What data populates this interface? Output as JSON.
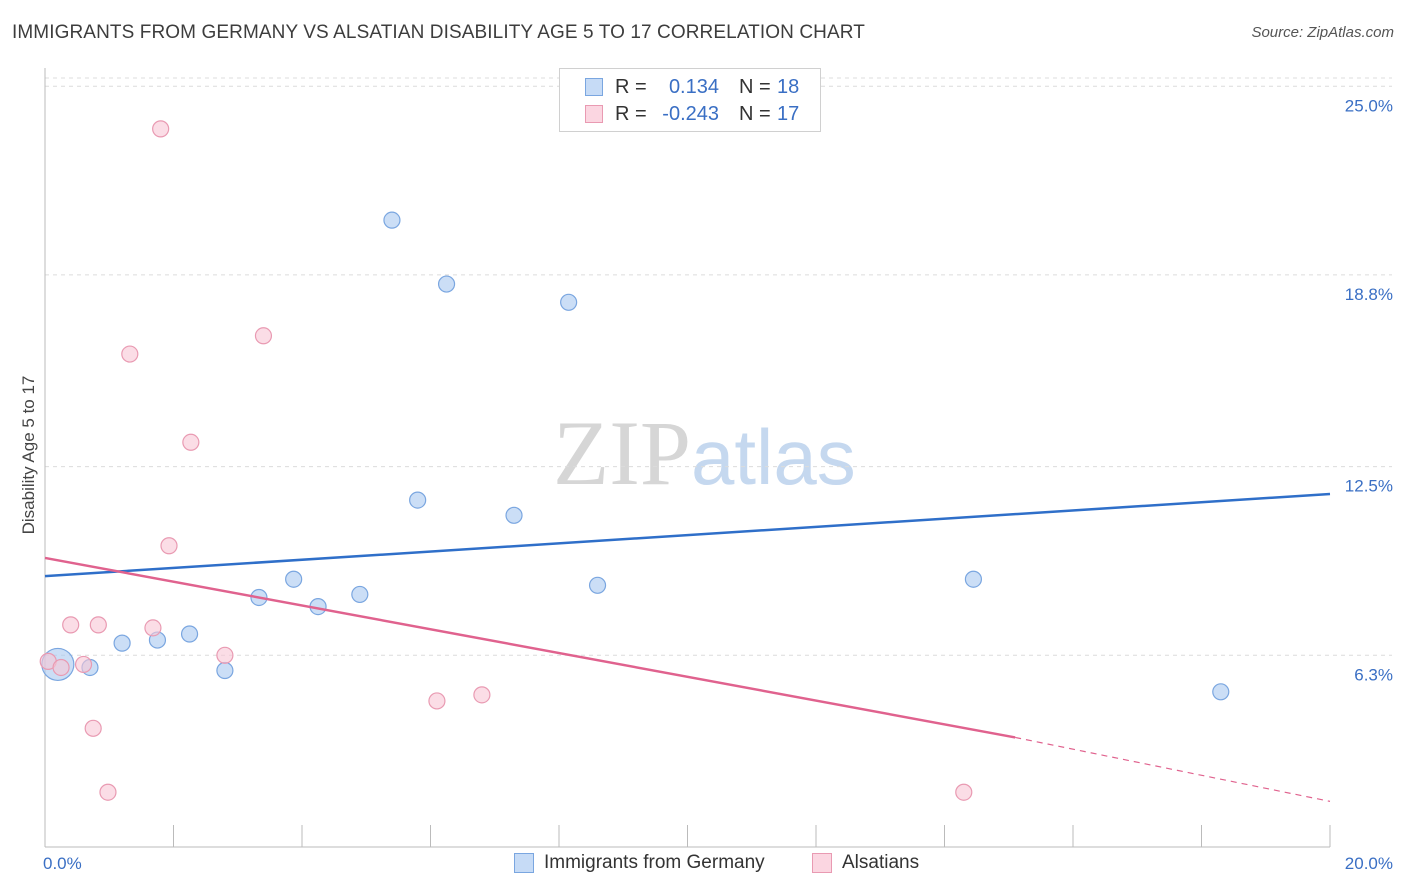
{
  "title": "IMMIGRANTS FROM GERMANY VS ALSATIAN DISABILITY AGE 5 TO 17 CORRELATION CHART",
  "source": "Source: ZipAtlas.com",
  "watermark": {
    "zip": "ZIP",
    "atlas": "atlas"
  },
  "legend": {
    "rows": [
      {
        "r_label": "R =",
        "r_value": "0.134",
        "n_label": "N =",
        "n_value": "18",
        "color": "#a9c8f0",
        "border": "#7aa6e0"
      },
      {
        "r_label": "R =",
        "r_value": "-0.243",
        "n_label": "N =",
        "n_value": "17",
        "color": "#f8c6d5",
        "border": "#e99ab2"
      }
    ]
  },
  "chart_data": {
    "type": "scatter",
    "title": "IMMIGRANTS FROM GERMANY VS ALSATIAN DISABILITY AGE 5 TO 17 CORRELATION CHART",
    "xlabel": "",
    "ylabel": "Disability Age 5 to 17",
    "xlim": [
      0,
      20
    ],
    "ylim": [
      0,
      25.6
    ],
    "x_tick_labels": [
      "0.0%",
      "20.0%"
    ],
    "y_ticks": [
      6.3,
      12.5,
      18.8,
      25.0
    ],
    "y_tick_labels": [
      "6.3%",
      "12.5%",
      "18.8%",
      "25.0%"
    ],
    "grid": true,
    "legend_position": "top-center",
    "series": [
      {
        "name": "Immigrants from Germany",
        "color": "#a9c8f0",
        "stroke": "#7aa6e0",
        "line_color": "#2f6fc9",
        "points": [
          [
            0.2,
            6.0,
            "large"
          ],
          [
            0.7,
            5.9
          ],
          [
            1.2,
            6.7
          ],
          [
            1.75,
            6.8
          ],
          [
            2.25,
            7.0
          ],
          [
            2.8,
            5.8
          ],
          [
            3.33,
            8.2
          ],
          [
            3.87,
            8.8
          ],
          [
            4.25,
            7.9
          ],
          [
            4.9,
            8.3
          ],
          [
            5.4,
            20.6
          ],
          [
            5.8,
            11.4
          ],
          [
            6.25,
            18.5
          ],
          [
            7.3,
            10.9
          ],
          [
            8.15,
            17.9
          ],
          [
            8.6,
            8.6
          ],
          [
            14.45,
            8.8
          ],
          [
            18.3,
            5.1
          ]
        ],
        "trend": {
          "x0": 0,
          "y0": 8.9,
          "x1": 20,
          "y1": 11.6
        }
      },
      {
        "name": "Alsatians",
        "color": "#f8c6d5",
        "stroke": "#e99ab2",
        "line_color": "#e0628e",
        "points": [
          [
            0.05,
            6.1
          ],
          [
            0.25,
            5.9
          ],
          [
            0.4,
            7.3
          ],
          [
            0.6,
            6.0
          ],
          [
            0.75,
            3.9
          ],
          [
            0.83,
            7.3
          ],
          [
            0.98,
            1.8
          ],
          [
            1.32,
            16.2
          ],
          [
            1.68,
            7.2
          ],
          [
            1.8,
            23.6
          ],
          [
            1.93,
            9.9
          ],
          [
            2.27,
            13.3
          ],
          [
            2.8,
            6.3
          ],
          [
            3.4,
            16.8
          ],
          [
            6.1,
            4.8
          ],
          [
            6.8,
            5.0
          ],
          [
            14.3,
            1.8
          ]
        ],
        "trend": {
          "x0": 0,
          "y0": 9.5,
          "x1": 15.1,
          "y1": 3.6,
          "dash_to_x": 20,
          "dash_to_y": 1.5
        }
      }
    ]
  }
}
